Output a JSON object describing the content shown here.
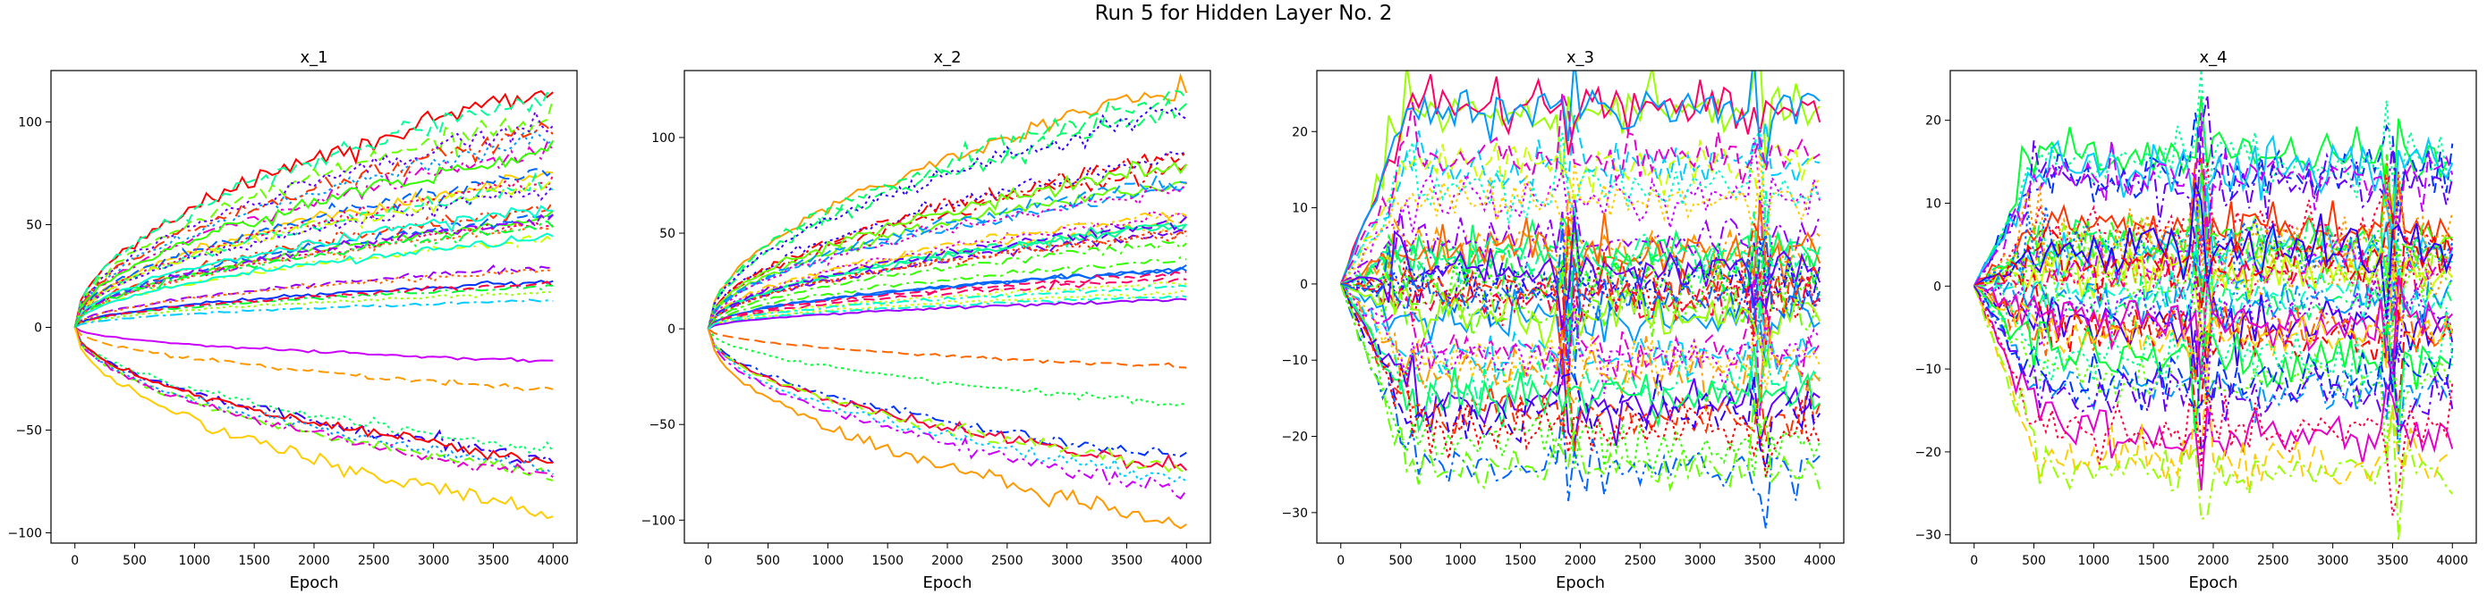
{
  "figure": {
    "suptitle": "Run 5 for Hidden Layer No. 2"
  },
  "chart_data": [
    {
      "type": "line",
      "title": "x_1",
      "xlabel": "Epoch",
      "ylabel": "",
      "xlim": [
        -200,
        4200
      ],
      "ylim": [
        -105,
        125
      ],
      "xticks": [
        0,
        500,
        1000,
        1500,
        2000,
        2500,
        3000,
        3500,
        4000
      ],
      "yticks": [
        -100,
        -50,
        0,
        50,
        100
      ],
      "grid": false,
      "series_summary": {
        "line_count": 40,
        "shape": "diverging from 0 at epoch 0, smooth monotone growth",
        "approx_final_values": [
          115,
          103,
          95,
          87,
          76,
          72,
          68,
          57,
          55,
          52,
          50,
          45,
          43,
          31,
          29,
          23,
          21,
          20,
          18,
          12,
          -14,
          -33,
          -60,
          -66,
          -68,
          -70,
          -72,
          -75,
          -93
        ]
      }
    },
    {
      "type": "line",
      "title": "x_2",
      "xlabel": "Epoch",
      "ylabel": "",
      "xlim": [
        -200,
        4200
      ],
      "ylim": [
        -112,
        135
      ],
      "xticks": [
        0,
        500,
        1000,
        1500,
        2000,
        2500,
        3000,
        3500,
        4000
      ],
      "yticks": [
        -100,
        -50,
        0,
        50,
        100
      ],
      "grid": false,
      "series_summary": {
        "line_count": 40,
        "shape": "diverging from 0 at epoch 0, smooth monotone growth",
        "approx_final_values": [
          125,
          112,
          93,
          85,
          80,
          75,
          62,
          58,
          55,
          52,
          48,
          34,
          31,
          25,
          22,
          20,
          14,
          -20,
          -37,
          -67,
          -72,
          -75,
          -78,
          -82,
          -100
        ]
      }
    },
    {
      "type": "line",
      "title": "x_3",
      "xlabel": "Epoch",
      "ylabel": "",
      "xlim": [
        -200,
        4200
      ],
      "ylim": [
        -34,
        28
      ],
      "xticks": [
        0,
        500,
        1000,
        1500,
        2000,
        2500,
        3000,
        3500,
        4000
      ],
      "yticks": [
        -30,
        -20,
        -10,
        0,
        10,
        20
      ],
      "grid": false,
      "series_summary": {
        "line_count": 40,
        "shape": "rapid divergence by epoch 500 then noisy plateau with spikes near 1900 and 3500",
        "approx_final_values": [
          22,
          16,
          11,
          5,
          3,
          1,
          -1,
          -3,
          -5,
          -8,
          -9,
          -12,
          -15,
          -18,
          -20,
          -25
        ]
      }
    },
    {
      "type": "line",
      "title": "x_4",
      "xlabel": "Epoch",
      "ylabel": "",
      "xlim": [
        -200,
        4200
      ],
      "ylim": [
        -31,
        26
      ],
      "xticks": [
        0,
        500,
        1000,
        1500,
        2000,
        2500,
        3000,
        3500,
        4000
      ],
      "yticks": [
        -30,
        -20,
        -10,
        0,
        10,
        20
      ],
      "grid": false,
      "series_summary": {
        "line_count": 40,
        "shape": "rapid divergence by epoch 500 then noisy plateau with spikes near 1900 and 3500",
        "approx_final_values": [
          15,
          14,
          6,
          5,
          4,
          2,
          1,
          -2,
          -4,
          -6,
          -10,
          -12,
          -17,
          -22
        ]
      }
    }
  ]
}
